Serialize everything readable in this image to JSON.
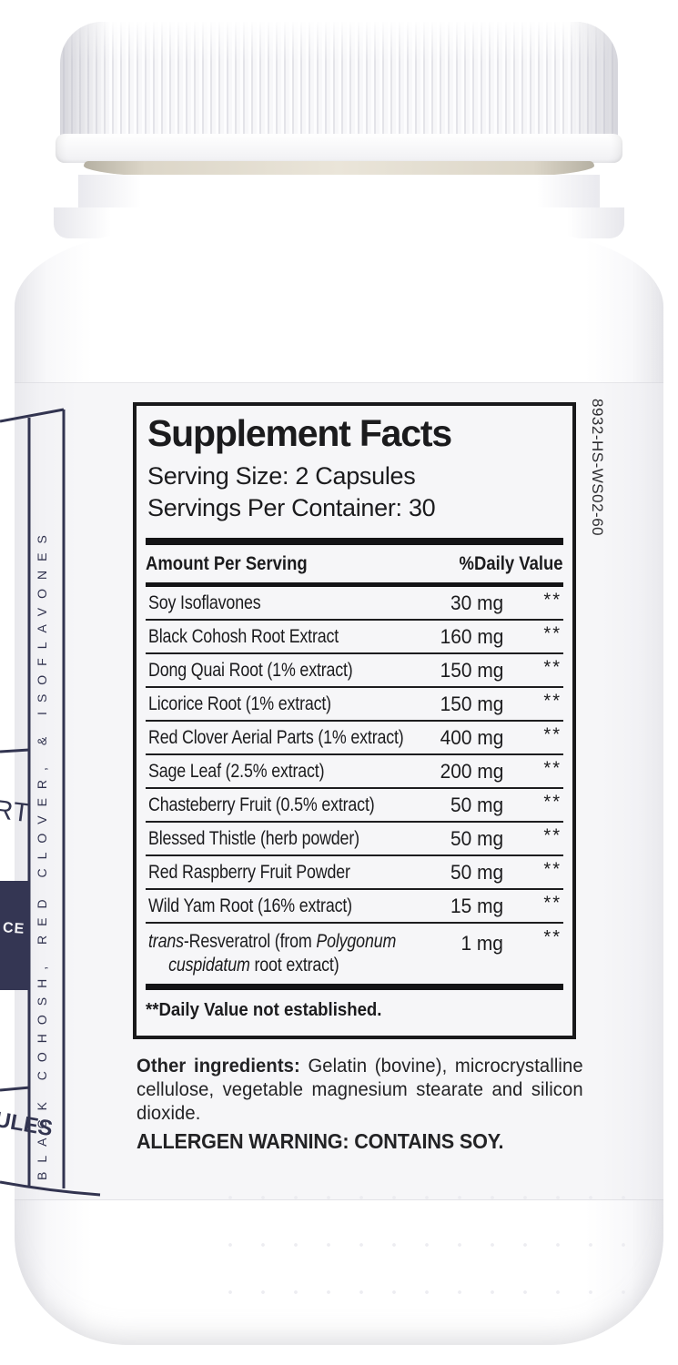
{
  "label": {
    "side_panel_text": "BLACK COHOSH, RED CLOVER, & ISOFLAVONES",
    "product_code": "8932-HS-WS02-60",
    "front_panel_partials": {
      "word_end_top": "RT",
      "word_end_navy_box": "CE",
      "word_end_bottom": "ULES"
    }
  },
  "supplement_facts": {
    "title": "Supplement Facts",
    "serving_size": "Serving Size: 2 Capsules",
    "servings_per_container": "Servings Per Container: 30",
    "columns": {
      "amount_per_serving": "Amount Per Serving",
      "daily_value": "%Daily Value"
    },
    "rows": [
      {
        "segments": [
          {
            "text": "Soy Isoflavones"
          }
        ],
        "amount": "30 mg",
        "dv": "**"
      },
      {
        "segments": [
          {
            "text": "Black Cohosh Root Extract"
          }
        ],
        "amount": "160 mg",
        "dv": "**"
      },
      {
        "segments": [
          {
            "text": "Dong Quai Root (1% extract)"
          }
        ],
        "amount": "150 mg",
        "dv": "**"
      },
      {
        "segments": [
          {
            "text": "Licorice Root (1% extract)"
          }
        ],
        "amount": "150 mg",
        "dv": "**"
      },
      {
        "segments": [
          {
            "text": "Red Clover Aerial Parts (1% extract)"
          }
        ],
        "amount": "400 mg",
        "dv": "**"
      },
      {
        "segments": [
          {
            "text": "Sage Leaf (2.5% extract)"
          }
        ],
        "amount": "200 mg",
        "dv": "**"
      },
      {
        "segments": [
          {
            "text": "Chasteberry Fruit (0.5% extract)"
          }
        ],
        "amount": "50 mg",
        "dv": "**"
      },
      {
        "segments": [
          {
            "text": "Blessed Thistle (herb powder)"
          }
        ],
        "amount": "50 mg",
        "dv": "**"
      },
      {
        "segments": [
          {
            "text": "Red Raspberry Fruit Powder"
          }
        ],
        "amount": "50 mg",
        "dv": "**"
      },
      {
        "segments": [
          {
            "text": "Wild Yam Root (16% extract)"
          }
        ],
        "amount": "15 mg",
        "dv": "**"
      },
      {
        "segments": [
          {
            "text": "trans",
            "italic": true
          },
          {
            "text": "-Resveratrol (from "
          },
          {
            "text": "Polygonum",
            "italic": true
          }
        ],
        "segments2": [
          {
            "text": "cuspidatum",
            "italic": true
          },
          {
            "text": " root extract)"
          }
        ],
        "amount": "1 mg",
        "dv": "**"
      }
    ],
    "footnote": "**Daily Value not established."
  },
  "other_ingredients": {
    "label": "Other ingredients:",
    "text": " Gelatin (bovine), microcrystalline cellulose, vegetable magnesium stearate and silicon dioxide.",
    "allergen_warning": "ALLERGEN WARNING: CONTAINS SOY."
  },
  "colors": {
    "navy": "#343653",
    "ink": "#1b1b1d",
    "label_background": "#f6f6f8"
  }
}
